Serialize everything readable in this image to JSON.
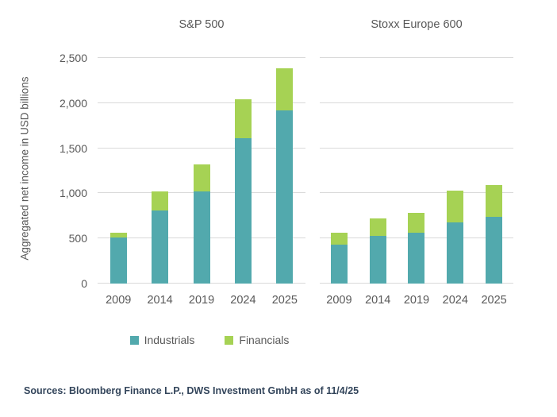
{
  "chart_data": {
    "type": "bar",
    "stacked": true,
    "ylabel": "Aggregated net income in USD billions",
    "ylim": [
      0,
      2500
    ],
    "yticks": [
      0,
      500,
      1000,
      1500,
      2000,
      2500
    ],
    "ytick_labels": [
      "0",
      "500",
      "1,000",
      "1,500",
      "2,000",
      "2,500"
    ],
    "categories": [
      "2009",
      "2014",
      "2019",
      "2024",
      "2025"
    ],
    "legend": [
      {
        "label": "Industrials",
        "color": "#52a9ad"
      },
      {
        "label": "Financials",
        "color": "#a6d254"
      }
    ],
    "grid_color": "#d9d9d9",
    "panels": [
      {
        "title": "S&P 500",
        "series": [
          {
            "name": "Industrials",
            "color": "#52a9ad",
            "values": [
              510,
              810,
              1020,
              1615,
              1915
            ]
          },
          {
            "name": "Financials",
            "color": "#a6d254",
            "values": [
              55,
              215,
              300,
              425,
              475
            ]
          }
        ]
      },
      {
        "title": "Stoxx Europe 600",
        "series": [
          {
            "name": "Industrials",
            "color": "#52a9ad",
            "values": [
              430,
              530,
              565,
              680,
              740
            ]
          },
          {
            "name": "Financials",
            "color": "#a6d254",
            "values": [
              130,
              190,
              215,
              350,
              355
            ]
          }
        ]
      }
    ]
  },
  "footer": {
    "sources": "Sources: Bloomberg Finance L.P., DWS Investment GmbH as of 11/4/25"
  }
}
